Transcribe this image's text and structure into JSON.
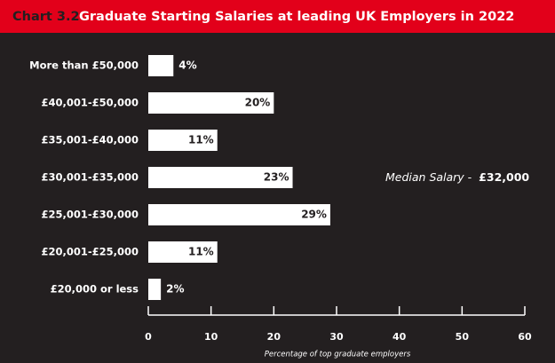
{
  "chart_data": {
    "type": "hbar",
    "chart_label": "Chart 3.2",
    "title": "Graduate Starting Salaries at leading UK Employers in 2022",
    "categories": [
      "More than £50,000",
      "£40,001-£50,000",
      "£35,001-£40,000",
      "£30,001-£35,000",
      "£25,001-£30,000",
      "£20,001-£25,000",
      "£20,000 or less"
    ],
    "values": [
      4,
      20,
      11,
      23,
      29,
      11,
      2
    ],
    "value_labels": [
      "4%",
      "20%",
      "11%",
      "23%",
      "29%",
      "11%",
      "2%"
    ],
    "color": "#ffffff",
    "xlim": [
      0,
      60
    ],
    "xticks": [
      0,
      10,
      20,
      30,
      40,
      50,
      60
    ],
    "xlabel": "Percentage of top graduate employers",
    "annotation": "Median Salary -",
    "annotation_value": "£32,000"
  }
}
